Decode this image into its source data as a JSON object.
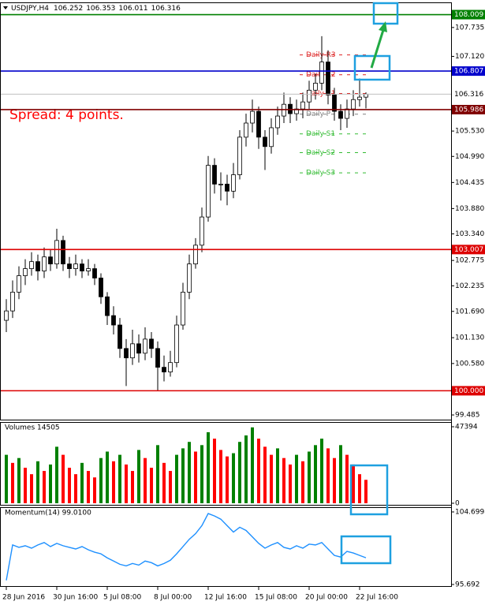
{
  "chart_data": [
    {
      "type": "candlestick",
      "title": "USDJPY,H4",
      "annotation": "Spread: 4 points.",
      "annotation_color": "#ff0000",
      "categories": [
        "28 Jun 2016",
        null,
        null,
        null,
        null,
        null,
        null,
        null,
        "30 Jun 16:00",
        null,
        null,
        null,
        null,
        null,
        null,
        null,
        "5 Jul 08:00",
        null,
        null,
        null,
        null,
        null,
        null,
        null,
        "8 Jul 00:00",
        null,
        null,
        null,
        null,
        null,
        null,
        null,
        "12 Jul 16:00",
        null,
        null,
        null,
        null,
        null,
        null,
        null,
        "15 Jul 08:00",
        null,
        null,
        null,
        null,
        null,
        null,
        null,
        "20 Jul 00:00",
        null,
        null,
        null,
        null,
        null,
        null,
        null,
        "22 Jul 16:00",
        null
      ],
      "open": [
        101.5,
        101.7,
        102.1,
        102.45,
        102.6,
        102.75,
        102.55,
        102.85,
        102.7,
        103.2,
        102.7,
        102.6,
        102.7,
        102.55,
        102.6,
        102.4,
        102.0,
        101.6,
        101.4,
        100.9,
        100.7,
        101.0,
        100.8,
        101.1,
        100.9,
        100.5,
        100.4,
        100.6,
        101.4,
        102.1,
        102.7,
        103.1,
        103.7,
        104.8,
        104.4,
        104.4,
        104.25,
        104.6,
        105.4,
        105.7,
        105.95,
        105.4,
        105.2,
        105.6,
        105.85,
        106.1,
        105.9,
        106.0,
        106.15,
        106.4,
        106.55,
        107.0,
        106.3,
        105.95,
        105.8,
        106.0,
        106.2,
        106.252
      ],
      "high": [
        101.95,
        102.35,
        102.65,
        102.8,
        102.95,
        102.9,
        103.05,
        103.0,
        103.45,
        103.3,
        102.85,
        102.9,
        102.8,
        102.8,
        102.7,
        102.5,
        102.1,
        101.8,
        101.55,
        101.1,
        101.3,
        101.2,
        101.35,
        101.25,
        101.05,
        100.75,
        100.85,
        101.6,
        102.3,
        102.9,
        103.25,
        103.9,
        105.0,
        104.95,
        104.65,
        104.6,
        104.85,
        105.55,
        105.9,
        106.2,
        106.05,
        105.55,
        105.8,
        106.05,
        106.35,
        106.25,
        106.2,
        106.35,
        106.6,
        106.75,
        107.55,
        107.25,
        106.45,
        106.1,
        106.2,
        106.4,
        106.65,
        106.353
      ],
      "low": [
        101.25,
        101.55,
        101.95,
        102.25,
        102.45,
        102.35,
        102.4,
        102.55,
        102.6,
        102.55,
        102.4,
        102.45,
        102.4,
        102.45,
        102.25,
        101.85,
        101.4,
        101.2,
        100.7,
        100.1,
        100.55,
        100.6,
        100.65,
        100.7,
        100.0,
        100.2,
        100.3,
        100.5,
        101.3,
        101.95,
        102.6,
        102.95,
        103.6,
        104.2,
        104.05,
        103.95,
        104.1,
        104.5,
        105.2,
        105.5,
        105.15,
        104.7,
        105.05,
        105.45,
        105.7,
        105.7,
        105.75,
        105.8,
        106.0,
        106.2,
        106.4,
        106.1,
        105.75,
        105.55,
        105.6,
        105.85,
        106.05,
        106.011
      ],
      "close": [
        101.7,
        102.1,
        102.45,
        102.6,
        102.75,
        102.55,
        102.85,
        102.7,
        103.2,
        102.7,
        102.6,
        102.7,
        102.55,
        102.6,
        102.4,
        102.0,
        101.6,
        101.4,
        100.9,
        100.7,
        101.0,
        100.8,
        101.1,
        100.9,
        100.5,
        100.4,
        100.6,
        101.4,
        102.1,
        102.7,
        103.1,
        103.7,
        104.8,
        104.4,
        104.4,
        104.25,
        104.6,
        105.4,
        105.7,
        105.95,
        105.4,
        105.2,
        105.6,
        105.85,
        106.1,
        105.9,
        106.0,
        106.15,
        106.4,
        106.55,
        107.0,
        106.3,
        105.95,
        105.8,
        106.0,
        106.2,
        106.252,
        106.316
      ],
      "up_color": "#ffffff",
      "down_color": "#000000",
      "edge_color": "#000000",
      "ylim": [
        99.385,
        108.27
      ],
      "yticks": [
        99.485,
        {
          "value": 100.58,
          "label": "100.580"
        },
        {
          "value": 101.13,
          "label": "101.130"
        },
        {
          "value": 101.69,
          "label": "101.690"
        },
        102.235,
        102.775,
        {
          "value": 103.34,
          "label": "103.340"
        },
        {
          "value": 103.88,
          "label": "103.880"
        },
        104.435,
        {
          "value": 104.99,
          "label": "104.990"
        },
        {
          "value": 105.53,
          "label": "105.530"
        },
        {
          "value": 107.12,
          "label": "107.120"
        },
        107.735
      ],
      "levels": [
        {
          "value": 108.009,
          "color": "#008000",
          "text_color": "#ffffff"
        },
        {
          "value": 106.807,
          "color": "#0000cc",
          "text_color": "#ffffff"
        },
        {
          "value": 106.316,
          "color": "#c0c0c0",
          "text_color": "#000000"
        },
        {
          "value": 105.986,
          "color": "#800000",
          "text_color": "#ffffff"
        },
        {
          "value": 103.007,
          "color": "#dd0000",
          "text_color": "#ffffff"
        },
        {
          "value": 100,
          "label": "100.000",
          "color": "#dd0000",
          "text_color": "#ffffff"
        }
      ],
      "pivots": [
        {
          "name": "Daily R3",
          "value": 107.15,
          "color": "#dd2222"
        },
        {
          "name": "Daily R2",
          "value": 106.73,
          "color": "#dd2222"
        },
        {
          "name": "Daily R1",
          "value": 106.33,
          "color": "#dd2222"
        },
        {
          "name": "Daily P",
          "value": 105.89,
          "color": "#808080"
        },
        {
          "name": "Daily S1",
          "value": 105.47,
          "color": "#33bb33"
        },
        {
          "name": "Daily S2",
          "value": 105.07,
          "color": "#33bb33"
        },
        {
          "name": "Daily S3",
          "value": 104.64,
          "color": "#33bb33"
        }
      ]
    },
    {
      "type": "bar",
      "title": "Volumes 14505",
      "values": [
        30000,
        25000,
        28000,
        22000,
        18000,
        26000,
        20000,
        24000,
        35000,
        30000,
        22000,
        18000,
        25000,
        20000,
        16000,
        28000,
        32000,
        26000,
        30000,
        24000,
        20000,
        33000,
        28000,
        22000,
        36000,
        25000,
        20000,
        30000,
        34000,
        38000,
        32000,
        36000,
        44000,
        40000,
        33000,
        29000,
        31000,
        38000,
        42000,
        47000,
        40000,
        35000,
        30000,
        34000,
        28000,
        24000,
        30000,
        26000,
        32000,
        36000,
        40000,
        34000,
        28000,
        36000,
        30000,
        24000,
        18000,
        14505
      ],
      "up_color": "#008000",
      "down_color": "#ff0000",
      "ylim": [
        0,
        47394
      ],
      "yticks": [
        0,
        47394
      ]
    },
    {
      "type": "line",
      "title": "Momentum(14) 99.0100",
      "values": [
        96.2,
        100.6,
        100.3,
        100.5,
        100.2,
        100.6,
        100.9,
        100.4,
        100.8,
        100.5,
        100.3,
        100.1,
        100.4,
        100.0,
        99.7,
        99.5,
        99.0,
        98.6,
        98.2,
        98.0,
        98.3,
        98.1,
        98.6,
        98.4,
        98.0,
        98.3,
        98.7,
        99.5,
        100.4,
        101.3,
        102.0,
        103.0,
        104.5,
        104.2,
        103.8,
        103.0,
        102.2,
        102.8,
        102.4,
        101.6,
        100.8,
        100.2,
        100.6,
        100.9,
        100.3,
        100.1,
        100.5,
        100.2,
        100.7,
        100.6,
        100.9,
        100.1,
        99.3,
        99.1,
        99.8,
        99.6,
        99.3,
        99.01
      ],
      "color": "#1e90ff",
      "ylim": [
        95.692,
        104.6998
      ],
      "yticks": [
        95.692,
        104.6998
      ]
    }
  ]
}
